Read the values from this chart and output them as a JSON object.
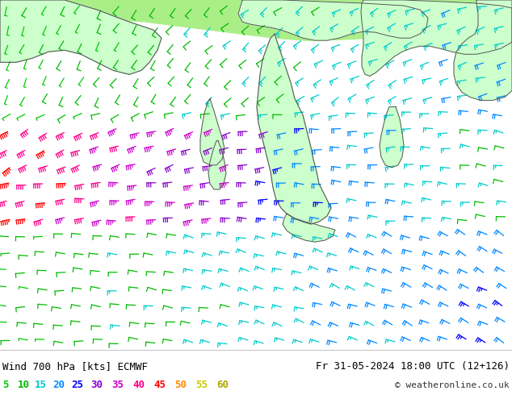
{
  "title_left": "Wind 700 hPa [kts] ECMWF",
  "title_right": "Fr 31-05-2024 18:00 UTC (12+126)",
  "copyright": "© weatheronline.co.uk",
  "legend_values": [
    5,
    10,
    15,
    20,
    25,
    30,
    35,
    40,
    45,
    50,
    55,
    60
  ],
  "legend_colors": [
    "#00cc00",
    "#00bb00",
    "#00cccc",
    "#0088ff",
    "#0000ff",
    "#8800cc",
    "#cc00cc",
    "#ff0088",
    "#ff0000",
    "#ff8800",
    "#cccc00",
    "#aaaa00"
  ],
  "sea_color": "#c8c8c8",
  "land_color": "#ccffcc",
  "fig_width": 6.34,
  "fig_height": 4.9,
  "dpi": 100,
  "bottom_bg": "#ffffff",
  "font_size_title": 9,
  "font_size_legend": 9,
  "font_size_copyright": 8
}
